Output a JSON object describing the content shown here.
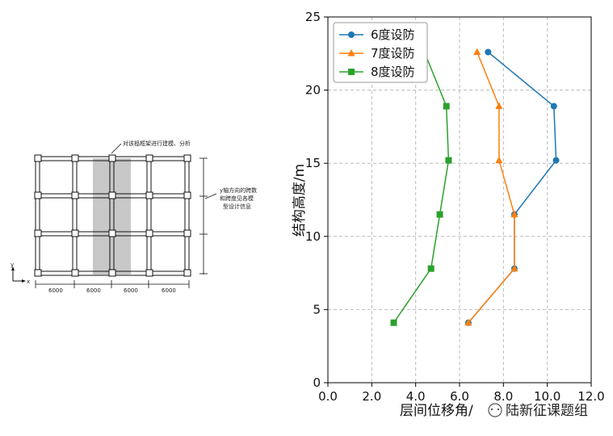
{
  "figure_left": {
    "callout_top": "对该榀框架进行建模、分析",
    "callout_right": [
      "y轴方向的跨数",
      "和跨度见各模",
      "型设计信息"
    ],
    "axis_y_label": "y",
    "axis_x_label": "x",
    "dimensions": [
      "6000",
      "6000",
      "6000",
      "6000"
    ]
  },
  "watermark": "陆新征课题组",
  "chart_data": {
    "type": "line",
    "title": "",
    "xlabel": "层间位移角/",
    "ylabel": "结构高度/m",
    "xlim": [
      0.0,
      12.0
    ],
    "ylim": [
      0,
      25
    ],
    "xticks": [
      "0.0",
      "2.0",
      "4.0",
      "6.0",
      "8.0",
      "10.0",
      "12.0"
    ],
    "yticks": [
      "0",
      "5",
      "10",
      "15",
      "20",
      "25"
    ],
    "grid": true,
    "legend_position": "top-left",
    "series": [
      {
        "name": "6度设防",
        "color": "#1f77b4",
        "marker": "circle",
        "points": [
          [
            6.4,
            4.1
          ],
          [
            8.5,
            7.8
          ],
          [
            8.5,
            11.5
          ],
          [
            10.4,
            15.2
          ],
          [
            10.3,
            18.9
          ],
          [
            7.3,
            22.6
          ]
        ]
      },
      {
        "name": "7度设防",
        "color": "#ff7f0e",
        "marker": "triangle",
        "points": [
          [
            6.4,
            4.1
          ],
          [
            8.5,
            7.8
          ],
          [
            8.5,
            11.5
          ],
          [
            7.8,
            15.2
          ],
          [
            7.8,
            18.9
          ],
          [
            6.8,
            22.6
          ]
        ]
      },
      {
        "name": "8度设防",
        "color": "#2ca02c",
        "marker": "square",
        "points": [
          [
            3.0,
            4.1
          ],
          [
            4.7,
            7.8
          ],
          [
            5.1,
            11.5
          ],
          [
            5.5,
            15.2
          ],
          [
            5.4,
            18.9
          ],
          [
            4.4,
            22.6
          ]
        ]
      }
    ]
  }
}
